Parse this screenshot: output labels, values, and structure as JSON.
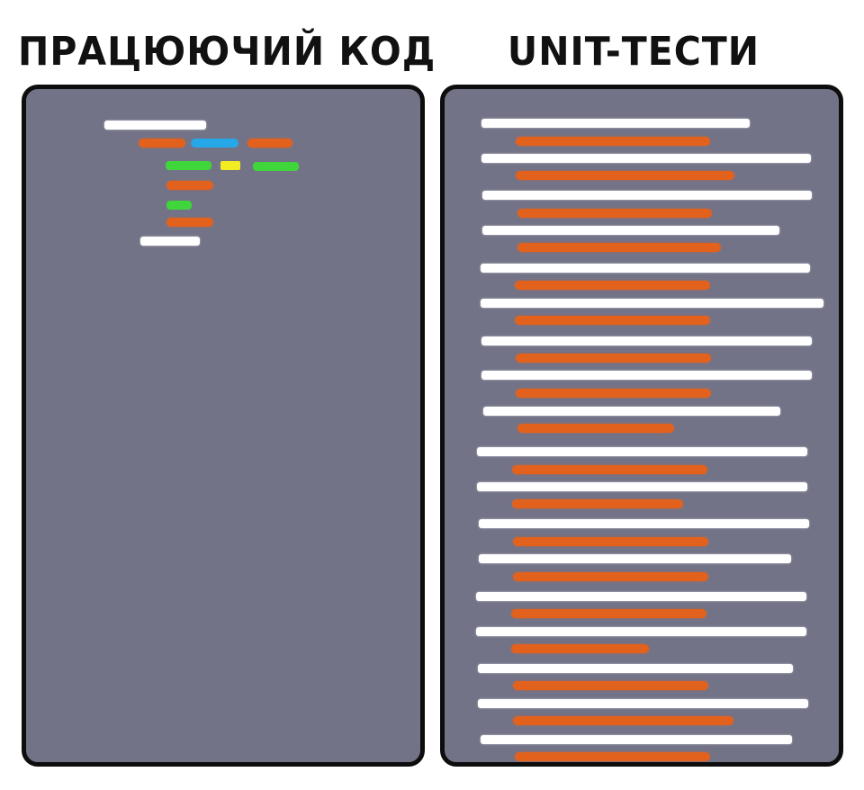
{
  "titles": {
    "left": "ПРАЦЮЮЧИЙ КОД",
    "right": "UNIT-ТЕСТИ"
  },
  "colors": {
    "panel_background": "#737388",
    "panel_border": "#0d0d0d",
    "code_white": "#ffffff",
    "code_orange": "#e2621d",
    "code_blue": "#25a7e8",
    "code_green": "#3ed63a",
    "code_yellow": "#f2ec22"
  }
}
